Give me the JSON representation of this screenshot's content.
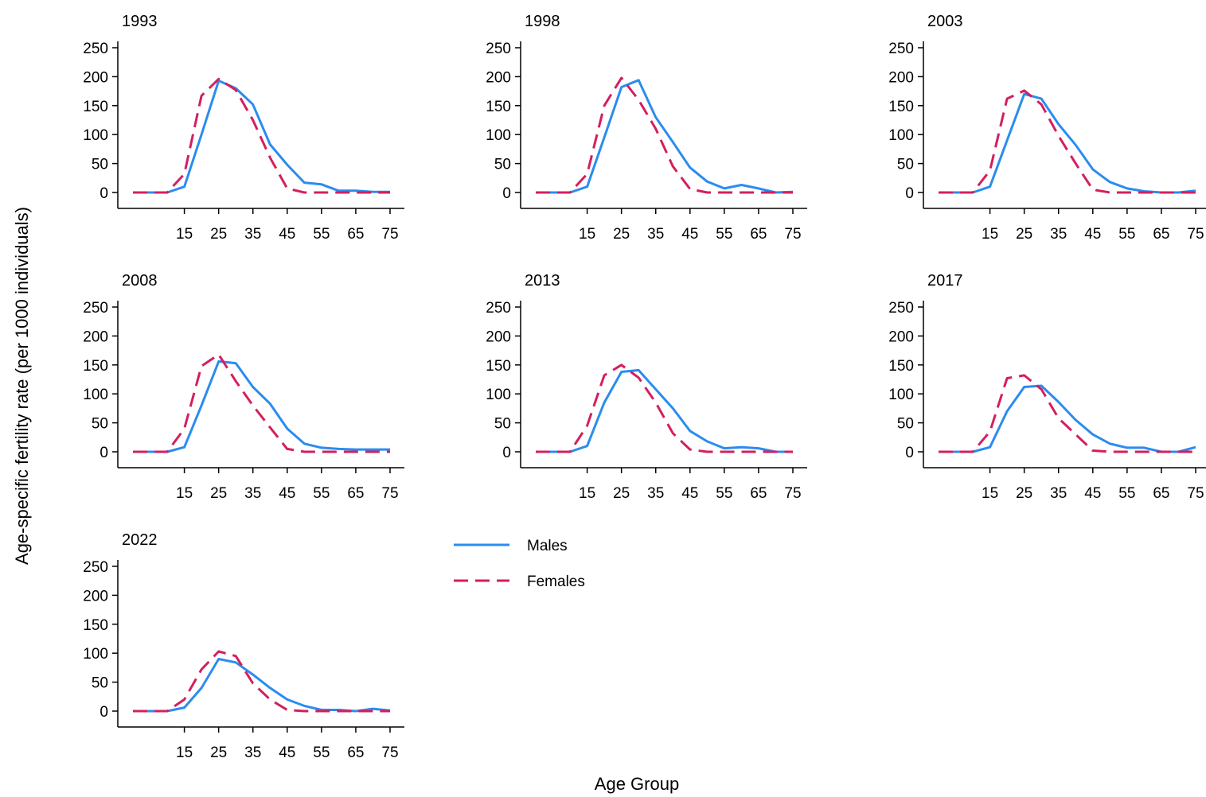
{
  "figure": {
    "ylabel": "Age-specific fertility rate (per 1000 individuals)",
    "xlabel": "Age Group"
  },
  "legend": {
    "items": [
      {
        "label": "Males",
        "color": "#2A8CF0",
        "style": "solid"
      },
      {
        "label": "Females",
        "color": "#D31F5F",
        "style": "dashed"
      }
    ],
    "placement": "center, right of 2022 panel"
  },
  "chart_data": [
    {
      "type": "line",
      "title": "1993",
      "x": [
        0,
        5,
        10,
        15,
        20,
        25,
        30,
        35,
        40,
        45,
        50,
        55,
        60,
        65,
        70,
        75
      ],
      "xticks": [
        15,
        25,
        35,
        45,
        55,
        65,
        75
      ],
      "yticks": [
        0,
        50,
        100,
        150,
        200,
        250
      ],
      "ylim": [
        0,
        250
      ],
      "grid": false,
      "series": [
        {
          "name": "Males",
          "values": [
            0,
            0,
            0,
            10,
            100,
            193,
            180,
            152,
            83,
            48,
            17,
            14,
            3,
            3,
            1,
            1
          ]
        },
        {
          "name": "Females",
          "values": [
            0,
            0,
            0,
            32,
            167,
            196,
            177,
            125,
            60,
            7,
            0,
            0,
            0,
            0,
            0,
            0
          ]
        }
      ]
    },
    {
      "type": "line",
      "title": "1998",
      "x": [
        0,
        5,
        10,
        15,
        20,
        25,
        30,
        35,
        40,
        45,
        50,
        55,
        60,
        65,
        70,
        75
      ],
      "xticks": [
        15,
        25,
        35,
        45,
        55,
        65,
        75
      ],
      "yticks": [
        0,
        50,
        100,
        150,
        200,
        250
      ],
      "ylim": [
        0,
        250
      ],
      "grid": false,
      "series": [
        {
          "name": "Males",
          "values": [
            0,
            0,
            0,
            10,
            95,
            182,
            194,
            130,
            87,
            43,
            19,
            7,
            13,
            7,
            0,
            1
          ]
        },
        {
          "name": "Females",
          "values": [
            0,
            0,
            0,
            32,
            150,
            198,
            160,
            110,
            45,
            6,
            0,
            0,
            0,
            0,
            0,
            0
          ]
        }
      ]
    },
    {
      "type": "line",
      "title": "2003",
      "x": [
        0,
        5,
        10,
        15,
        20,
        25,
        30,
        35,
        40,
        45,
        50,
        55,
        60,
        65,
        70,
        75
      ],
      "xticks": [
        15,
        25,
        35,
        45,
        55,
        65,
        75
      ],
      "yticks": [
        0,
        50,
        100,
        150,
        200,
        250
      ],
      "ylim": [
        0,
        250
      ],
      "grid": false,
      "series": [
        {
          "name": "Males",
          "values": [
            0,
            0,
            0,
            10,
            90,
            170,
            162,
            118,
            82,
            40,
            18,
            7,
            2,
            0,
            0,
            3
          ]
        },
        {
          "name": "Females",
          "values": [
            0,
            0,
            0,
            38,
            162,
            176,
            152,
            98,
            50,
            5,
            0,
            0,
            0,
            0,
            0,
            0
          ]
        }
      ]
    },
    {
      "type": "line",
      "title": "2008",
      "x": [
        0,
        5,
        10,
        15,
        20,
        25,
        30,
        35,
        40,
        45,
        50,
        55,
        60,
        65,
        70,
        75
      ],
      "xticks": [
        15,
        25,
        35,
        45,
        55,
        65,
        75
      ],
      "yticks": [
        0,
        50,
        100,
        150,
        200,
        250
      ],
      "ylim": [
        0,
        250
      ],
      "grid": false,
      "series": [
        {
          "name": "Males",
          "values": [
            0,
            0,
            0,
            8,
            80,
            156,
            153,
            112,
            83,
            40,
            14,
            7,
            5,
            4,
            4,
            4
          ]
        },
        {
          "name": "Females",
          "values": [
            0,
            0,
            0,
            40,
            148,
            168,
            122,
            80,
            42,
            5,
            0,
            0,
            0,
            0,
            0,
            0
          ]
        }
      ]
    },
    {
      "type": "line",
      "title": "2013",
      "x": [
        0,
        5,
        10,
        15,
        20,
        25,
        30,
        35,
        40,
        45,
        50,
        55,
        60,
        65,
        70,
        75
      ],
      "xticks": [
        15,
        25,
        35,
        45,
        55,
        65,
        75
      ],
      "yticks": [
        0,
        50,
        100,
        150,
        200,
        250
      ],
      "ylim": [
        0,
        250
      ],
      "grid": false,
      "series": [
        {
          "name": "Males",
          "values": [
            0,
            0,
            0,
            10,
            85,
            138,
            141,
            108,
            75,
            36,
            18,
            6,
            8,
            6,
            0,
            0
          ]
        },
        {
          "name": "Females",
          "values": [
            0,
            0,
            0,
            45,
            132,
            150,
            128,
            85,
            32,
            4,
            0,
            0,
            0,
            0,
            0,
            0
          ]
        }
      ]
    },
    {
      "type": "line",
      "title": "2017",
      "x": [
        0,
        5,
        10,
        15,
        20,
        25,
        30,
        35,
        40,
        45,
        50,
        55,
        60,
        65,
        70,
        75
      ],
      "xticks": [
        15,
        25,
        35,
        45,
        55,
        65,
        75
      ],
      "yticks": [
        0,
        50,
        100,
        150,
        200,
        250
      ],
      "ylim": [
        0,
        250
      ],
      "grid": false,
      "series": [
        {
          "name": "Males",
          "values": [
            0,
            0,
            0,
            8,
            70,
            112,
            114,
            86,
            55,
            30,
            14,
            7,
            7,
            0,
            0,
            8
          ]
        },
        {
          "name": "Females",
          "values": [
            0,
            0,
            0,
            35,
            127,
            132,
            108,
            58,
            30,
            2,
            0,
            0,
            0,
            0,
            0,
            0
          ]
        }
      ]
    },
    {
      "type": "line",
      "title": "2022",
      "x": [
        0,
        5,
        10,
        15,
        20,
        25,
        30,
        35,
        40,
        45,
        50,
        55,
        60,
        65,
        70,
        75
      ],
      "xticks": [
        15,
        25,
        35,
        45,
        55,
        65,
        75
      ],
      "yticks": [
        0,
        50,
        100,
        150,
        200,
        250
      ],
      "ylim": [
        0,
        250
      ],
      "grid": false,
      "series": [
        {
          "name": "Males",
          "values": [
            0,
            0,
            0,
            6,
            40,
            90,
            84,
            63,
            40,
            20,
            9,
            2,
            2,
            0,
            4,
            1
          ]
        },
        {
          "name": "Females",
          "values": [
            0,
            0,
            0,
            20,
            72,
            103,
            95,
            48,
            20,
            2,
            0,
            0,
            0,
            0,
            0,
            0
          ]
        }
      ]
    }
  ]
}
